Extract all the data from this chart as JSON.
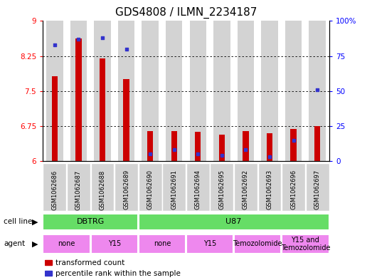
{
  "title": "GDS4808 / ILMN_2234187",
  "samples": [
    "GSM1062686",
    "GSM1062687",
    "GSM1062688",
    "GSM1062689",
    "GSM1062690",
    "GSM1062691",
    "GSM1062694",
    "GSM1062695",
    "GSM1062692",
    "GSM1062693",
    "GSM1062696",
    "GSM1062697"
  ],
  "transformed_counts": [
    7.82,
    8.62,
    8.2,
    7.76,
    6.64,
    6.64,
    6.62,
    6.57,
    6.64,
    6.6,
    6.69,
    6.75
  ],
  "percentile_ranks": [
    83,
    87,
    88,
    80,
    5,
    8,
    5,
    4,
    8,
    3,
    15,
    51
  ],
  "ylim_left": [
    6.0,
    9.0
  ],
  "ylim_right": [
    0,
    100
  ],
  "yticks_left": [
    6.0,
    6.75,
    7.5,
    8.25,
    9.0
  ],
  "yticks_right": [
    0,
    25,
    50,
    75,
    100
  ],
  "ytick_labels_left": [
    "6",
    "6.75",
    "7.5",
    "8.25",
    "9"
  ],
  "ytick_labels_right": [
    "0",
    "25",
    "50",
    "75",
    "100%"
  ],
  "bar_color": "#cc0000",
  "dot_color": "#3333cc",
  "background_color": "#ffffff",
  "bar_bg_color": "#d3d3d3",
  "cell_line_color": "#66dd66",
  "agent_color": "#ee88ee",
  "cell_lines": [
    {
      "label": "DBTRG",
      "start": 0,
      "end": 3
    },
    {
      "label": "U87",
      "start": 4,
      "end": 11
    }
  ],
  "agents": [
    {
      "label": "none",
      "start": 0,
      "end": 1
    },
    {
      "label": "Y15",
      "start": 2,
      "end": 3
    },
    {
      "label": "none",
      "start": 4,
      "end": 5
    },
    {
      "label": "Y15",
      "start": 6,
      "end": 7
    },
    {
      "label": "Temozolomide",
      "start": 8,
      "end": 9
    },
    {
      "label": "Y15 and\nTemozolomide",
      "start": 10,
      "end": 11
    }
  ],
  "legend_items": [
    {
      "label": "transformed count",
      "color": "#cc0000"
    },
    {
      "label": "percentile rank within the sample",
      "color": "#3333cc"
    }
  ],
  "grid_lines": [
    6.75,
    7.5,
    8.25
  ],
  "title_fontsize": 11,
  "tick_fontsize": 7.5,
  "label_fontsize": 8
}
